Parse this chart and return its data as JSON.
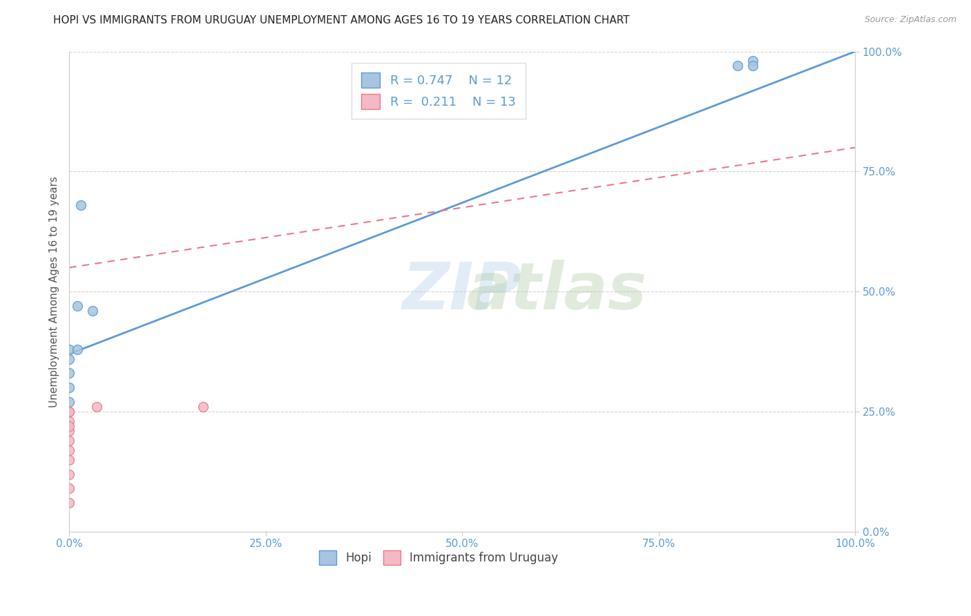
{
  "title": "HOPI VS IMMIGRANTS FROM URUGUAY UNEMPLOYMENT AMONG AGES 16 TO 19 YEARS CORRELATION CHART",
  "source": "Source: ZipAtlas.com",
  "ylabel": "Unemployment Among Ages 16 to 19 years",
  "xlim": [
    0.0,
    1.0
  ],
  "ylim": [
    0.0,
    1.0
  ],
  "xticks": [
    0.0,
    0.25,
    0.5,
    0.75,
    1.0
  ],
  "yticks": [
    0.0,
    0.25,
    0.5,
    0.75,
    1.0
  ],
  "xtick_labels": [
    "0.0%",
    "25.0%",
    "50.0%",
    "75.0%",
    "100.0%"
  ],
  "ytick_labels": [
    "0.0%",
    "25.0%",
    "50.0%",
    "75.0%",
    "100.0%"
  ],
  "hopi_color": "#a8c4e0",
  "hopi_edge_color": "#5b9bd5",
  "hopi_R": 0.747,
  "hopi_N": 12,
  "hopi_line_color": "#5b9bd5",
  "uruguay_color": "#f5b8c4",
  "uruguay_edge_color": "#e8788a",
  "uruguay_R": 0.211,
  "uruguay_N": 13,
  "uruguay_line_color": "#e8788a",
  "hopi_x": [
    0.0,
    0.0,
    0.0,
    0.0,
    0.0,
    0.01,
    0.01,
    0.015,
    0.85,
    0.87,
    0.87,
    0.03
  ],
  "hopi_y": [
    0.3,
    0.33,
    0.36,
    0.38,
    0.27,
    0.47,
    0.38,
    0.68,
    0.97,
    0.98,
    0.97,
    0.46
  ],
  "uruguay_x": [
    0.0,
    0.0,
    0.0,
    0.0,
    0.0,
    0.0,
    0.0,
    0.0,
    0.0,
    0.0,
    0.0,
    0.035,
    0.17
  ],
  "uruguay_y": [
    0.06,
    0.09,
    0.12,
    0.15,
    0.17,
    0.19,
    0.21,
    0.23,
    0.25,
    0.25,
    0.22,
    0.26,
    0.26
  ],
  "hopi_line_x0": 0.0,
  "hopi_line_y0": 0.37,
  "hopi_line_x1": 1.0,
  "hopi_line_y1": 1.0,
  "uru_line_x0": 0.0,
  "uru_line_y0": 0.55,
  "uru_line_x1": 1.0,
  "uru_line_y1": 0.8,
  "watermark_zip": "ZIP",
  "watermark_atlas": "atlas",
  "marker_size": 100,
  "bg_color": "#ffffff",
  "grid_color": "#cccccc",
  "title_fontsize": 11,
  "axis_label_fontsize": 11,
  "tick_fontsize": 11,
  "tick_color": "#5b9bd5",
  "legend_R_color": "#5b9bd5",
  "yticks_side": "right"
}
